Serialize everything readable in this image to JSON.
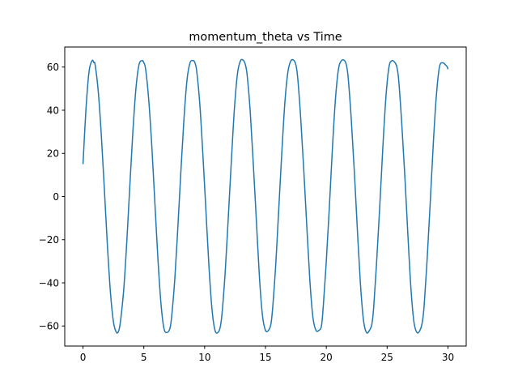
{
  "chart_data": {
    "type": "line",
    "title": "momentum_theta vs Time",
    "xlabel": "",
    "ylabel": "",
    "xlim": [
      -1.5,
      31.5
    ],
    "ylim": [
      -69.3,
      69.3
    ],
    "xticks": [
      0,
      5,
      10,
      15,
      20,
      25,
      30
    ],
    "yticks": [
      -60,
      -40,
      -20,
      0,
      20,
      40,
      60
    ],
    "grid": false,
    "legend": "none",
    "series": [
      {
        "color": "#1f77b4",
        "x": [
          0,
          0.25,
          0.5,
          0.75,
          0.9,
          1.0,
          1.25,
          1.5,
          1.75,
          2.0,
          2.25,
          2.5,
          2.75,
          2.95,
          3.1,
          3.35,
          3.6,
          3.85,
          4.1,
          4.35,
          4.6,
          4.85,
          5.0,
          5.15,
          5.4,
          5.65,
          5.9,
          6.15,
          6.4,
          6.65,
          6.9,
          7.15,
          7.3,
          7.55,
          7.8,
          8.05,
          8.3,
          8.55,
          8.8,
          9.05,
          9.2,
          9.35,
          9.6,
          9.85,
          10.1,
          10.35,
          10.6,
          10.85,
          11.1,
          11.3,
          11.45,
          11.7,
          11.95,
          12.2,
          12.45,
          12.7,
          12.95,
          13.2,
          13.35,
          13.5,
          13.75,
          14.0,
          14.25,
          14.5,
          14.75,
          15.0,
          15.25,
          15.45,
          15.6,
          15.85,
          16.1,
          16.35,
          16.6,
          16.85,
          17.1,
          17.35,
          17.5,
          17.65,
          17.9,
          18.15,
          18.4,
          18.65,
          18.9,
          19.15,
          19.4,
          19.6,
          19.75,
          20.0,
          20.25,
          20.5,
          20.75,
          21.0,
          21.25,
          21.5,
          21.65,
          21.8,
          22.05,
          22.3,
          22.55,
          22.8,
          23.05,
          23.3,
          23.55,
          23.75,
          23.9,
          24.15,
          24.4,
          24.65,
          24.9,
          25.15,
          25.4,
          25.65,
          25.8,
          25.95,
          26.2,
          26.45,
          26.7,
          26.95,
          27.2,
          27.45,
          27.7,
          27.9,
          28.05,
          28.3,
          28.55,
          28.8,
          29.05,
          29.3,
          29.55,
          29.8,
          29.95,
          30.0
        ],
        "y": [
          15,
          41,
          58,
          63,
          62,
          61,
          49,
          29,
          4,
          -22,
          -44,
          -58,
          -63,
          -62,
          -57,
          -43,
          -21,
          5,
          30,
          50,
          61,
          63,
          62,
          59,
          45,
          24,
          -2,
          -28,
          -49,
          -61,
          -63,
          -61,
          -55,
          -38,
          -14,
          12,
          36,
          54,
          62,
          63,
          62,
          58,
          43,
          20,
          -6,
          -32,
          -52,
          -62,
          -63,
          -60,
          -53,
          -34,
          -9,
          17,
          41,
          57,
          63,
          63,
          61,
          56,
          39,
          15,
          -11,
          -37,
          -55,
          -62,
          -62,
          -59,
          -51,
          -31,
          -5,
          21,
          44,
          58,
          63,
          63,
          61,
          55,
          36,
          12,
          -14,
          -39,
          -56,
          -62,
          -62,
          -60,
          -51,
          -30,
          -5,
          22,
          45,
          59,
          63,
          63,
          61,
          55,
          36,
          12,
          -15,
          -40,
          -57,
          -63,
          -62,
          -59,
          -51,
          -29,
          -4,
          23,
          46,
          60,
          63,
          62,
          60,
          54,
          34,
          10,
          -17,
          -42,
          -58,
          -63,
          -62,
          -58,
          -50,
          -28,
          -2,
          25,
          47,
          60,
          62,
          61,
          60,
          59
        ]
      }
    ]
  }
}
